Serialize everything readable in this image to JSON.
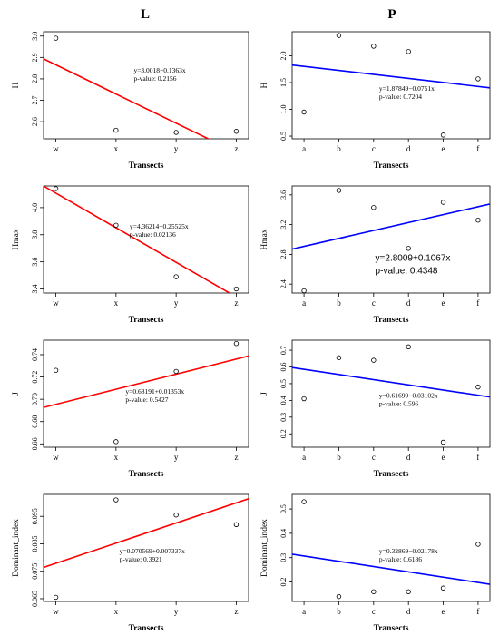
{
  "columns": [
    {
      "title": "L"
    },
    {
      "title": "P"
    }
  ],
  "chart_data": [
    {
      "type": "scatter",
      "column": "L",
      "xlabel": "Transects",
      "ylabel": "H",
      "categories": [
        "w",
        "x",
        "y",
        "z"
      ],
      "values": [
        2.99,
        2.56,
        2.55,
        2.555
      ],
      "ylim": [
        2.52,
        3.02
      ],
      "yticks": [
        2.6,
        2.7,
        2.8,
        2.9,
        3.0
      ],
      "ytick_labels": [
        "2.6",
        "2.7",
        "2.8",
        "2.9",
        "3.0"
      ],
      "fit": {
        "intercept": 3.0018,
        "slope": -0.1363,
        "color": "#ff0000"
      },
      "equation": "y=3.0018−0.1363x",
      "pvalue": "p-value: 0.2156",
      "large_label": false
    },
    {
      "type": "scatter",
      "column": "P",
      "xlabel": "Transects",
      "ylabel": "H",
      "categories": [
        "a",
        "b",
        "c",
        "d",
        "e",
        "f"
      ],
      "values": [
        0.95,
        2.38,
        2.18,
        2.08,
        0.52,
        1.57
      ],
      "ylim": [
        0.45,
        2.45
      ],
      "yticks": [
        0.5,
        1.0,
        1.5,
        2.0
      ],
      "ytick_labels": [
        "0.5",
        "1.0",
        "1.5",
        "2.0"
      ],
      "fit": {
        "intercept": 1.87849,
        "slope": -0.0751,
        "color": "#0000ff"
      },
      "equation": "y=1.87849−0.0751x",
      "pvalue": "p-value: 0.7204",
      "large_label": false
    },
    {
      "type": "scatter",
      "column": "L",
      "xlabel": "Transects",
      "ylabel": "Hmax",
      "categories": [
        "w",
        "x",
        "y",
        "z"
      ],
      "values": [
        4.14,
        3.87,
        3.49,
        3.4
      ],
      "ylim": [
        3.37,
        4.16
      ],
      "yticks": [
        3.4,
        3.6,
        3.8,
        4.0
      ],
      "ytick_labels": [
        "3.4",
        "3.6",
        "3.8",
        "4.0"
      ],
      "fit": {
        "intercept": 4.36214,
        "slope": -0.25525,
        "color": "#ff0000"
      },
      "equation": "y=4.36214−0.25525x",
      "pvalue": "p-value: 0.02136",
      "large_label": false
    },
    {
      "type": "scatter",
      "column": "P",
      "xlabel": "Transects",
      "ylabel": "Hmax",
      "categories": [
        "a",
        "b",
        "c",
        "d",
        "e",
        "f"
      ],
      "values": [
        2.31,
        3.66,
        3.43,
        2.88,
        3.5,
        3.26
      ],
      "ylim": [
        2.28,
        3.72
      ],
      "yticks": [
        2.4,
        2.8,
        3.2,
        3.6
      ],
      "ytick_labels": [
        "2.4",
        "2.8",
        "3.2",
        "3.6"
      ],
      "fit": {
        "intercept": 2.8009,
        "slope": 0.1067,
        "color": "#0000ff"
      },
      "equation": "y=2.8009+0.1067x",
      "pvalue": "p-value: 0.4348",
      "large_label": true
    },
    {
      "type": "scatter",
      "column": "L",
      "xlabel": "Transects",
      "ylabel": "J",
      "categories": [
        "w",
        "x",
        "y",
        "z"
      ],
      "values": [
        0.726,
        0.662,
        0.725,
        0.75
      ],
      "ylim": [
        0.657,
        0.753
      ],
      "yticks": [
        0.66,
        0.68,
        0.7,
        0.72,
        0.74
      ],
      "ytick_labels": [
        "0.66",
        "0.68",
        "0.70",
        "0.72",
        "0.74"
      ],
      "fit": {
        "intercept": 0.68191,
        "slope": 0.01353,
        "color": "#ff0000"
      },
      "equation": "y=0.68191+0.01353x",
      "pvalue": "p-value: 0.5427",
      "large_label": false
    },
    {
      "type": "scatter",
      "column": "P",
      "xlabel": "Transects",
      "ylabel": "J",
      "categories": [
        "a",
        "b",
        "c",
        "d",
        "e",
        "f"
      ],
      "values": [
        0.41,
        0.655,
        0.64,
        0.72,
        0.15,
        0.48
      ],
      "ylim": [
        0.12,
        0.76
      ],
      "yticks": [
        0.2,
        0.3,
        0.4,
        0.5,
        0.6,
        0.7
      ],
      "ytick_labels": [
        "0.2",
        "0.3",
        "0.4",
        "0.5",
        "0.6",
        "0.7"
      ],
      "fit": {
        "intercept": 0.61699,
        "slope": -0.03102,
        "color": "#0000ff"
      },
      "equation": "y=0.61699−0.03102x",
      "pvalue": "p-value: 0.596",
      "large_label": false
    },
    {
      "type": "scatter",
      "column": "L",
      "xlabel": "Transects",
      "ylabel": "Dominant_index",
      "categories": [
        "w",
        "x",
        "y",
        "z"
      ],
      "values": [
        0.0655,
        0.101,
        0.0955,
        0.092
      ],
      "ylim": [
        0.064,
        0.103
      ],
      "yticks": [
        0.065,
        0.075,
        0.085,
        0.095
      ],
      "ytick_labels": [
        "0.065",
        "0.075",
        "0.085",
        "0.095"
      ],
      "fit": {
        "intercept": 0.070569,
        "slope": 0.007337,
        "color": "#ff0000"
      },
      "equation": "y=0.070569+0.007337x",
      "pvalue": "p-value: 0.3921",
      "large_label": false
    },
    {
      "type": "scatter",
      "column": "P",
      "xlabel": "Transects",
      "ylabel": "Dominant_index",
      "categories": [
        "a",
        "b",
        "c",
        "d",
        "e",
        "f"
      ],
      "values": [
        0.53,
        0.14,
        0.16,
        0.16,
        0.175,
        0.355
      ],
      "ylim": [
        0.12,
        0.56
      ],
      "yticks": [
        0.2,
        0.3,
        0.4,
        0.5
      ],
      "ytick_labels": [
        "0.2",
        "0.3",
        "0.4",
        "0.5"
      ],
      "fit": {
        "intercept": 0.32869,
        "slope": -0.02178,
        "color": "#0000ff"
      },
      "equation": "y=0.32869−0.02178x",
      "pvalue": "p-value: 0.6186",
      "large_label": false
    }
  ]
}
